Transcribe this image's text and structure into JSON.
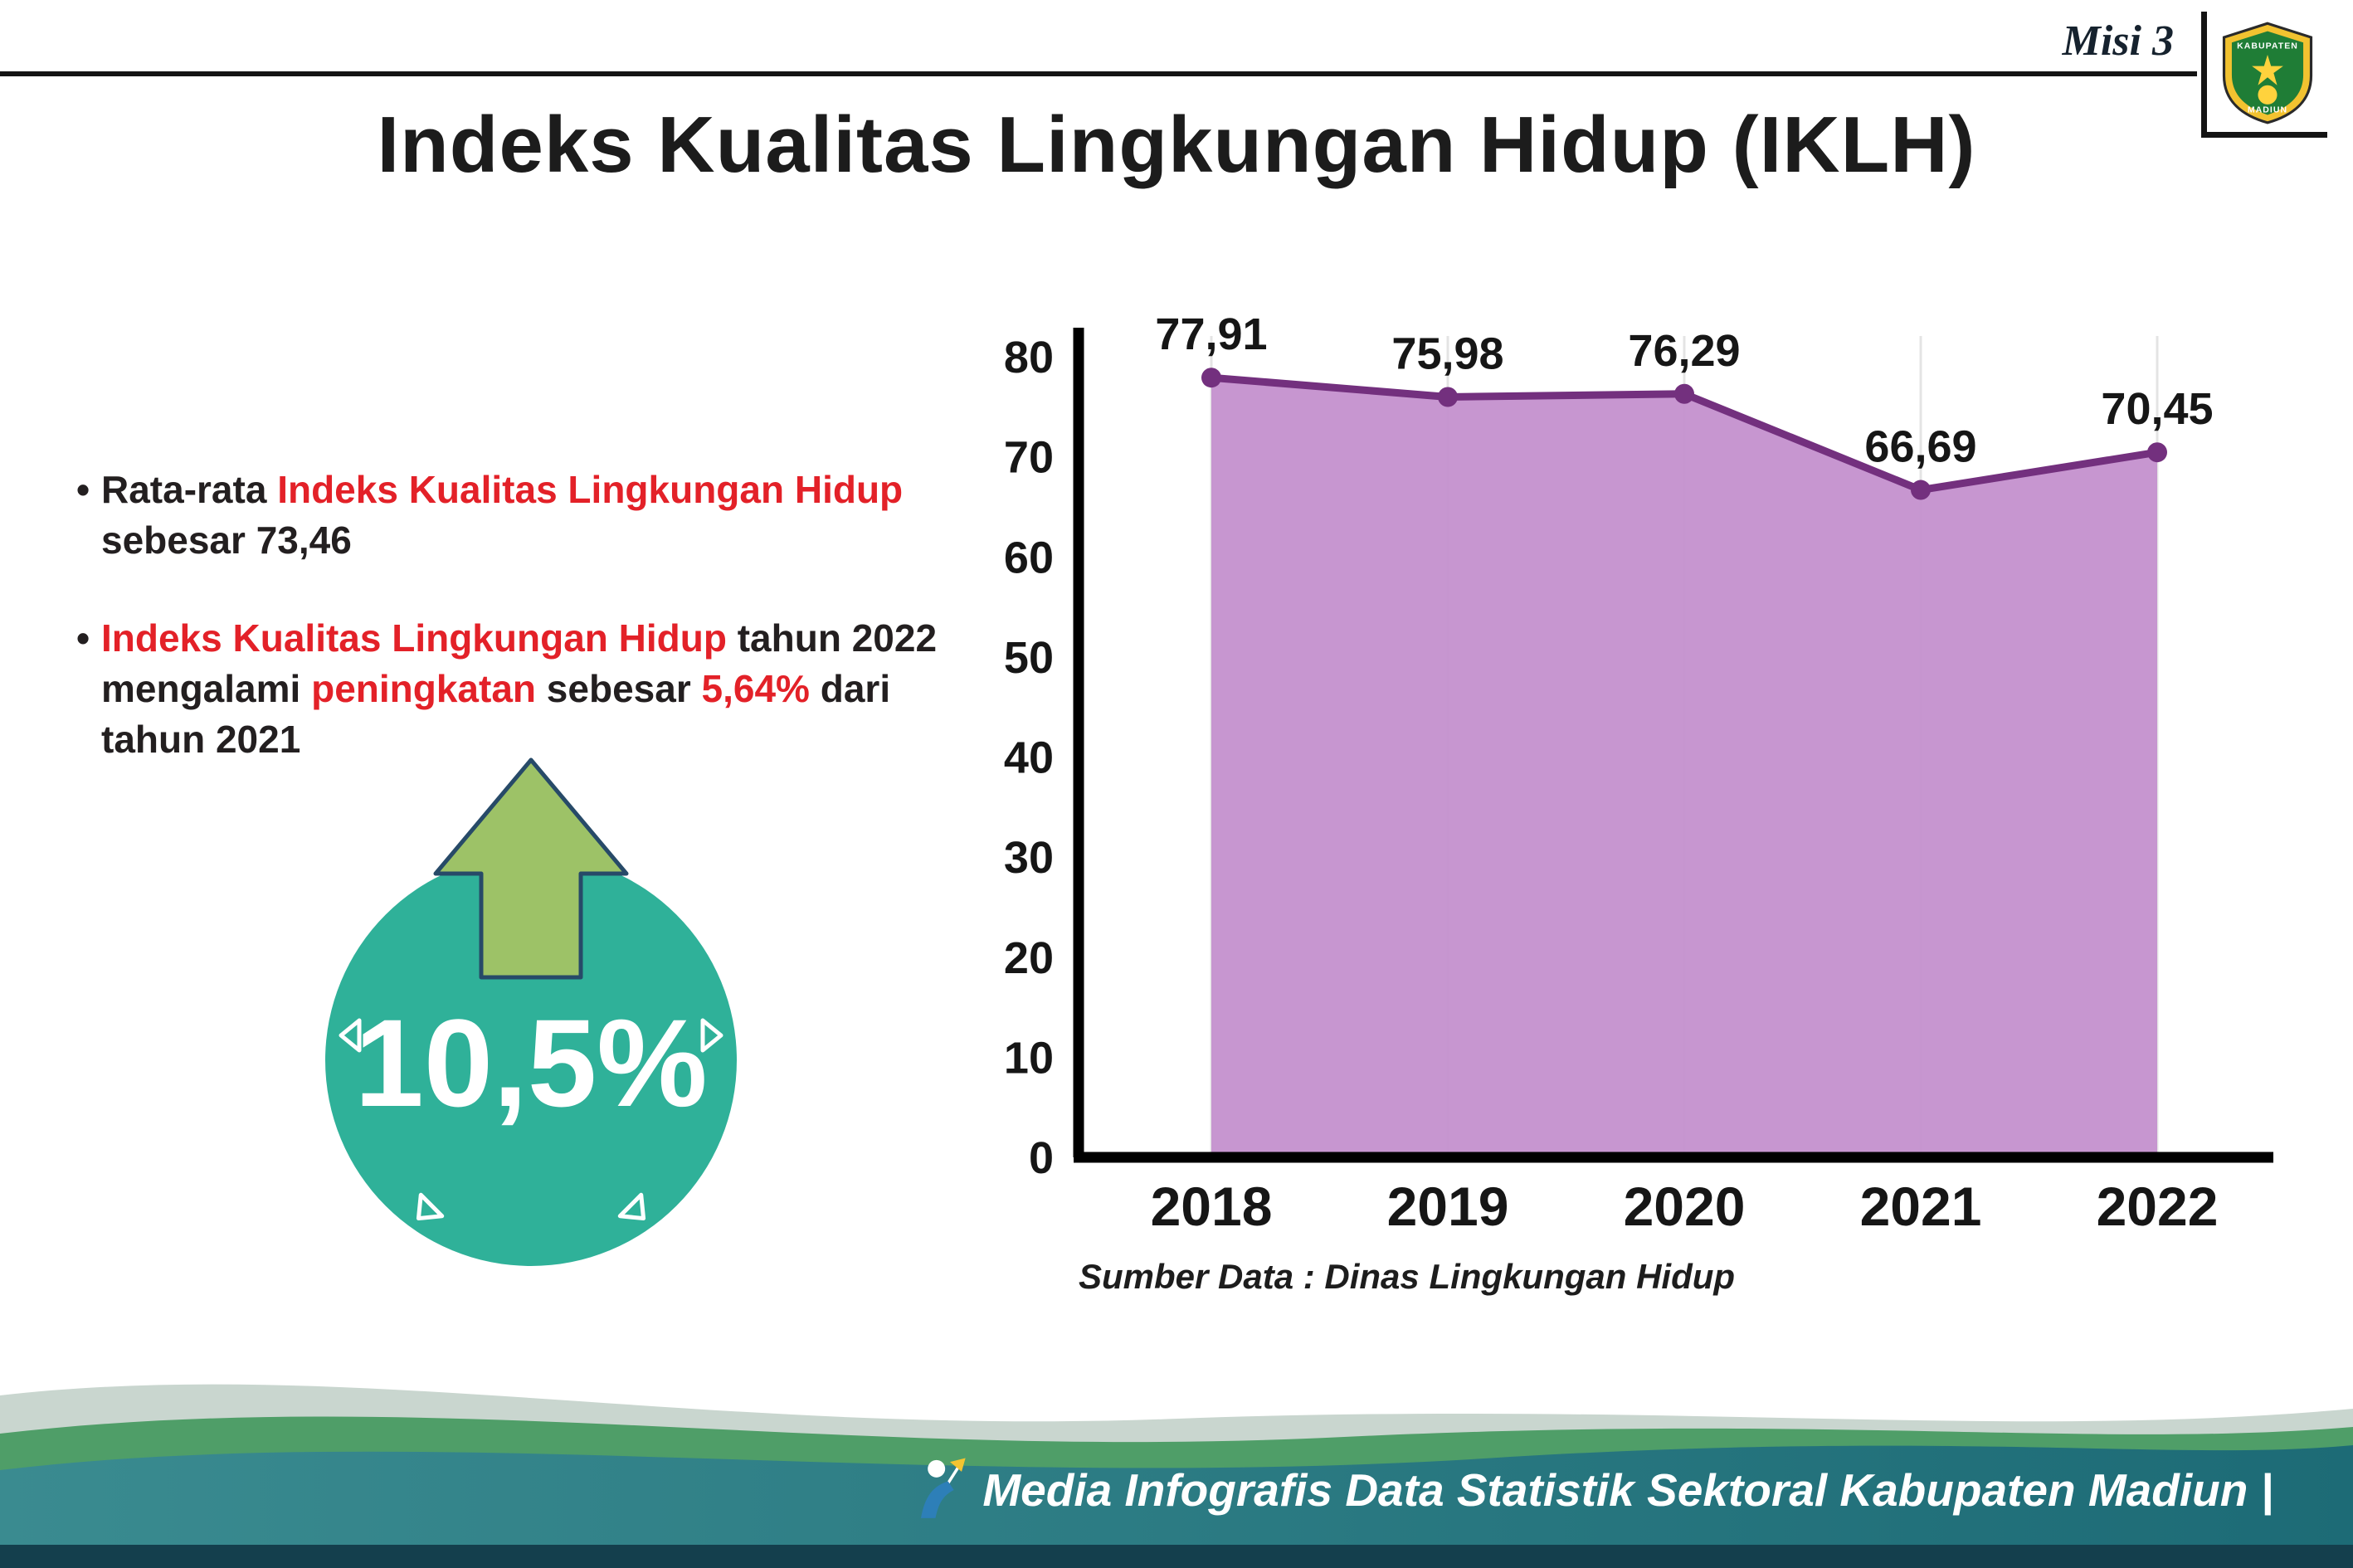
{
  "header": {
    "misi_label": "Misi 3",
    "logo": {
      "top": "KABUPATEN",
      "bottom": "MADIUN"
    }
  },
  "title": "Indeks Kualitas Lingkungan Hidup (IKLH)",
  "bullets": [
    {
      "segments": [
        {
          "text": "Rata-rata ",
          "color": "dark"
        },
        {
          "text": "Indeks Kualitas Lingkungan Hidup",
          "color": "red"
        },
        {
          "text": " sebesar 73,46",
          "color": "dark"
        }
      ]
    },
    {
      "segments": [
        {
          "text": "Indeks Kualitas Lingkungan Hidup",
          "color": "red"
        },
        {
          "text": " tahun 2022 mengalami ",
          "color": "dark"
        },
        {
          "text": "peningkatan",
          "color": "red"
        },
        {
          "text": " sebesar ",
          "color": "dark"
        },
        {
          "text": "5,64%",
          "color": "red"
        },
        {
          "text": " dari tahun 2021",
          "color": "dark"
        }
      ]
    }
  ],
  "badge": {
    "value": "10,5%",
    "circle_color": "#2fb199",
    "arrow_color": "#9dc267"
  },
  "chart_data": {
    "type": "area",
    "title": "",
    "xlabel": "",
    "ylabel": "",
    "x": [
      2018,
      2019,
      2020,
      2021,
      2022
    ],
    "values": [
      77.91,
      75.98,
      76.29,
      66.69,
      70.45
    ],
    "labels": [
      "77,91",
      "75,98",
      "76,29",
      "66,69",
      "70,45"
    ],
    "ylim": [
      0,
      80
    ],
    "ytick_step": 10,
    "grid": "light vertical gridlines per year",
    "line_color": "#73307e",
    "fill_color": "#c490ce",
    "source": "Sumber Data : Dinas Lingkungan Hidup"
  },
  "footer": {
    "text": "Media Infografis Data Statistik Sektoral Kabupaten Madiun |",
    "colors": {
      "light_wave": "#c9d6cf",
      "green_wave": "#4f9e68",
      "teal_wave": "#2c7d84",
      "bottom_strip": "#143f4d"
    }
  },
  "accent_colors": {
    "highlight_red": "#e32128",
    "badge_teal": "#2fb199",
    "chart_purple": "#73307e"
  }
}
